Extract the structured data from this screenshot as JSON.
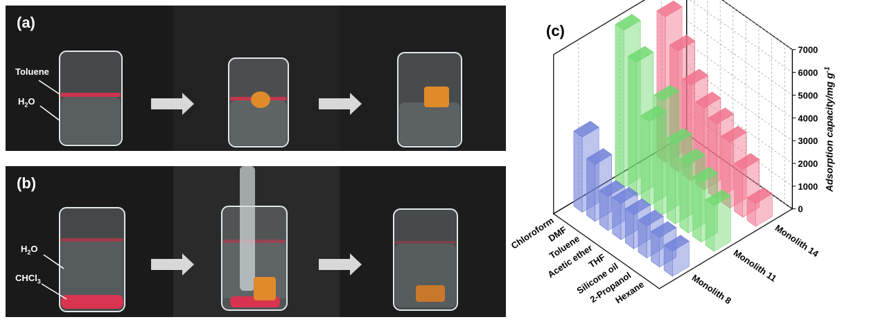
{
  "panels": {
    "a": {
      "label": "(a)",
      "annotations": {
        "toluene": "Toluene",
        "water": "H2O"
      }
    },
    "b": {
      "label": "(b)",
      "annotations": {
        "water": "H2O",
        "chloroform": "CHCl3"
      }
    },
    "c": {
      "label": "(c)"
    }
  },
  "colors": {
    "monolith8": "#6f7fd8",
    "monolith11": "#6fd86f",
    "monolith14": "#f0708a",
    "liquid_red": "#d8334f",
    "monolith_orange": "#e08a2a"
  },
  "chart_data": {
    "type": "bar3d",
    "title": "",
    "zlabel": "Adsorption capacity/mg g-1",
    "zlim": [
      0,
      7000
    ],
    "zticks": [
      "0",
      "1000",
      "2000",
      "3000",
      "4000",
      "5000",
      "6000",
      "7000"
    ],
    "categories": [
      "Chloroform",
      "DMF",
      "Toluene",
      "Acetic ether",
      "THF",
      "Silicone oil",
      "2-Propanol",
      "Hexane"
    ],
    "series": [
      {
        "name": "Monolith 8",
        "values": [
          3300,
          2500,
          1500,
          1600,
          1500,
          1400,
          1300,
          1100
        ]
      },
      {
        "name": "Monolith 11",
        "values": [
          6900,
          5900,
          3700,
          5000,
          3500,
          3000,
          2600,
          2000
        ]
      },
      {
        "name": "Monolith 14",
        "values": [
          6400,
          5300,
          4200,
          3600,
          3300,
          2900,
          2100,
          1000
        ]
      }
    ]
  }
}
